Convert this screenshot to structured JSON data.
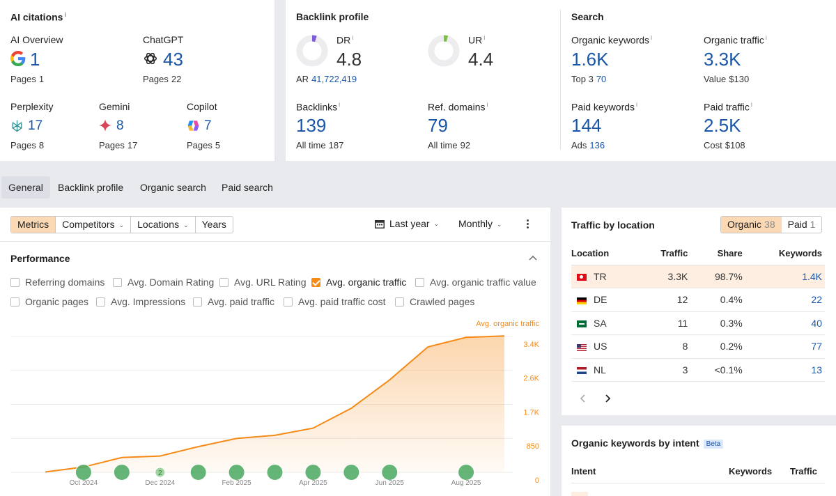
{
  "ai_citations": {
    "title": "AI citations",
    "info": "i",
    "items": [
      {
        "name": "AI Overview",
        "value": "1",
        "pages_label": "Pages",
        "pages": "1",
        "icon": "google-icon"
      },
      {
        "name": "ChatGPT",
        "value": "43",
        "pages_label": "Pages",
        "pages": "22",
        "icon": "chatgpt-icon"
      },
      {
        "name": "Perplexity",
        "value": "17",
        "pages_label": "Pages",
        "pages": "8",
        "icon": "perplexity-icon"
      },
      {
        "name": "Gemini",
        "value": "8",
        "pages_label": "Pages",
        "pages": "17",
        "icon": "gemini-icon"
      },
      {
        "name": "Copilot",
        "value": "7",
        "pages_label": "Pages",
        "pages": "5",
        "icon": "copilot-icon"
      }
    ]
  },
  "backlink_profile": {
    "title": "Backlink profile",
    "dr": {
      "label": "DR",
      "value": "4.8",
      "fraction": 0.048,
      "color": "#7b5cd6"
    },
    "ur": {
      "label": "UR",
      "value": "4.4",
      "fraction": 0.044,
      "color": "#7ac043"
    },
    "ar": {
      "label": "AR",
      "value": "41,722,419"
    },
    "backlinks": {
      "label": "Backlinks",
      "value": "139",
      "sub_label": "All time",
      "sub_value": "187"
    },
    "ref_domains": {
      "label": "Ref. domains",
      "value": "79",
      "sub_label": "All time",
      "sub_value": "92"
    }
  },
  "search": {
    "title": "Search",
    "organic_keywords": {
      "label": "Organic keywords",
      "value": "1.6K",
      "sub_label": "Top 3",
      "sub_value": "70"
    },
    "organic_traffic": {
      "label": "Organic traffic",
      "value": "3.3K",
      "sub_label": "Value",
      "sub_value": "$130"
    },
    "paid_keywords": {
      "label": "Paid keywords",
      "value": "144",
      "sub_label": "Ads",
      "sub_value": "136"
    },
    "paid_traffic": {
      "label": "Paid traffic",
      "value": "2.5K",
      "sub_label": "Cost",
      "sub_value": "$108"
    }
  },
  "tabs": [
    "General",
    "Backlink profile",
    "Organic search",
    "Paid search"
  ],
  "toolbar": {
    "segments": [
      "Metrics",
      "Competitors",
      "Locations",
      "Years"
    ],
    "date_range": "Last year",
    "interval": "Monthly"
  },
  "performance": {
    "title": "Performance",
    "checkboxes": [
      {
        "label": "Referring domains",
        "checked": false
      },
      {
        "label": "Avg. Domain Rating",
        "checked": false
      },
      {
        "label": "Avg. URL Rating",
        "checked": false
      },
      {
        "label": "Avg. organic traffic",
        "checked": true
      },
      {
        "label": "Avg. organic traffic value",
        "checked": false
      },
      {
        "label": "Organic pages",
        "checked": false
      },
      {
        "label": "Avg. Impressions",
        "checked": false
      },
      {
        "label": "Avg. paid traffic",
        "checked": false
      },
      {
        "label": "Avg. paid traffic cost",
        "checked": false
      },
      {
        "label": "Crawled pages",
        "checked": false
      }
    ]
  },
  "chart_data": {
    "type": "area",
    "series": [
      {
        "name": "Avg. organic traffic",
        "color": "#f58a16",
        "values": [
          30,
          420,
          1180,
          1300,
          2050,
          2700,
          2950,
          3520,
          5110,
          7370,
          10000,
          10760,
          10880
        ]
      }
    ],
    "x": [
      "Sep 2024",
      "Oct 2024",
      "Nov 2024",
      "Dec 2024",
      "Jan 2025",
      "Feb 2025",
      "Mar 2025",
      "Apr 2025",
      "May 2025",
      "Jun 2025",
      "Jul 2025",
      "Aug 2025",
      "Sep 2025"
    ],
    "x_tick_labels": [
      "Oct 2024",
      "Dec 2024",
      "Feb 2025",
      "Apr 2025",
      "Jun 2025",
      "Aug 2025"
    ],
    "y_tick_labels": [
      "0",
      "850",
      "1.7K",
      "2.6K",
      "3.4K"
    ],
    "ylim": [
      0,
      11000
    ],
    "grid": true,
    "annotation_markers": [
      "Oct 2024",
      "Nov 2024",
      "Dec 2024",
      "Jan 2025",
      "Feb 2025",
      "Mar 2025",
      "Apr 2025",
      "May 2025",
      "Jun 2025",
      "Aug 2025"
    ],
    "marker_labels": {
      "Dec 2024": "2"
    }
  },
  "traffic_by_location": {
    "title": "Traffic by location",
    "toggle": [
      {
        "label": "Organic",
        "count": "38"
      },
      {
        "label": "Paid",
        "count": "1"
      }
    ],
    "columns": [
      "Location",
      "Traffic",
      "Share",
      "Keywords"
    ],
    "rows": [
      {
        "code": "TR",
        "traffic": "3.3K",
        "share": "98.7%",
        "keywords": "1.4K",
        "flag": "tr"
      },
      {
        "code": "DE",
        "traffic": "12",
        "share": "0.4%",
        "keywords": "22",
        "flag": "de"
      },
      {
        "code": "SA",
        "traffic": "11",
        "share": "0.3%",
        "keywords": "40",
        "flag": "sa"
      },
      {
        "code": "US",
        "traffic": "8",
        "share": "0.2%",
        "keywords": "77",
        "flag": "us"
      },
      {
        "code": "NL",
        "traffic": "3",
        "share": "<0.1%",
        "keywords": "13",
        "flag": "nl"
      }
    ]
  },
  "keywords_by_intent": {
    "title": "Organic keywords by intent",
    "badge": "Beta",
    "columns": [
      "Intent",
      "Keywords",
      "Traffic"
    ]
  }
}
